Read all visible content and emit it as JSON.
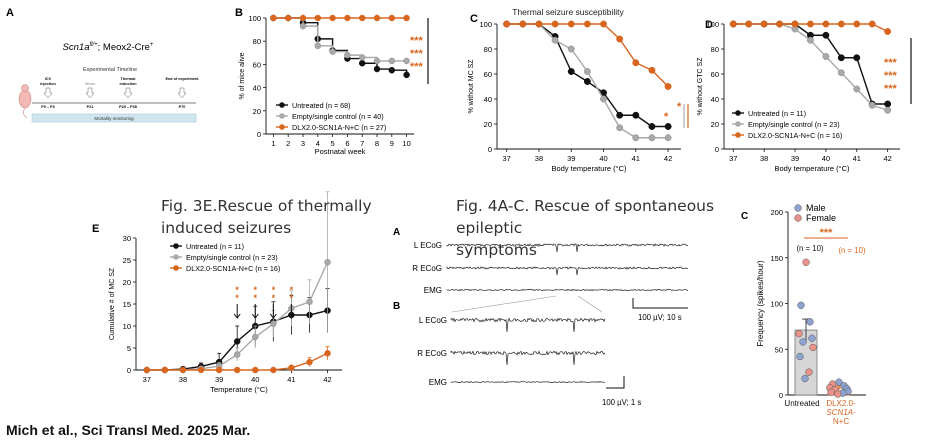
{
  "colors": {
    "untreated": "#111111",
    "control": "#a9a9a9",
    "treated": "#d9661f",
    "male": "#8fa3d1",
    "female": "#e8928a",
    "bar_fill": "#d6d6d6",
    "timeline_band": "#cfe6ef"
  },
  "captions": {
    "fig3e": "Fig. 3E.Rescue of thermally induced seizures",
    "fig3e_line1": "Fig. 3E.Rescue of thermally",
    "fig3e_line2": "induced seizures",
    "fig4": "Fig. 4A-C. Rescue of spontaneous epileptic symptoms",
    "fig4_line1": "Fig. 4A-C. Rescue of spontaneous epileptic",
    "fig4_line2": "symptoms",
    "credit": "Mich et al., Sci Transl Med. 2025 Mar.",
    "thermal_title": "Thermal seizure susceptibility"
  },
  "panel_a": {
    "letter": "A",
    "genotype_main": "Scn1a",
    "genotype_sup": "fl/+",
    "genotype_rest": "; Meox2-Cre",
    "genotype_sup2": "+",
    "timeline_title": "Experimental Timeline",
    "steps": [
      {
        "top": "ICV",
        "bottom": "injection",
        "day": "P0 – P3"
      },
      {
        "top": "",
        "bottom": "Wean",
        "day": "P21"
      },
      {
        "top": "Thermal",
        "bottom": "induction",
        "day": "P25 – P35"
      },
      {
        "top": "End of experiment",
        "bottom": "",
        "day": "P70"
      }
    ],
    "band_label": "Mortality monitoring"
  },
  "chart_data": [
    {
      "id": "fig2b_survival",
      "letter": "B",
      "type": "line",
      "title": "",
      "xlabel": "Postnatal week",
      "ylabel": "% of mice alive",
      "xlim": [
        0.5,
        10.5
      ],
      "ylim": [
        0,
        100
      ],
      "xticks": [
        1,
        2,
        3,
        4,
        5,
        6,
        7,
        8,
        9,
        10
      ],
      "yticks": [
        0,
        20,
        40,
        60,
        80,
        100
      ],
      "step": true,
      "series": [
        {
          "name": "Untreated",
          "n": "68",
          "color_key": "untreated",
          "x": [
            1,
            2,
            3,
            4,
            5,
            6,
            7,
            8,
            9,
            10
          ],
          "y": [
            100,
            100,
            96,
            82,
            72,
            65,
            61,
            56,
            55,
            51
          ]
        },
        {
          "name": "Empty/single control",
          "n": "40",
          "color_key": "control",
          "x": [
            1,
            2,
            3,
            4,
            5,
            6,
            7,
            8,
            9,
            10
          ],
          "y": [
            100,
            100,
            93,
            76,
            71,
            68,
            66,
            63,
            63,
            63
          ]
        },
        {
          "name": "DLX2.0-SCN1A-N+C",
          "n": "27",
          "color_key": "treated",
          "x": [
            1,
            2,
            3,
            4,
            5,
            6,
            7,
            8,
            9,
            10
          ],
          "y": [
            100,
            100,
            100,
            100,
            100,
            100,
            100,
            100,
            100,
            100
          ]
        }
      ],
      "significance": [
        "***",
        "***",
        "***"
      ],
      "legend_loc": "bottom-right"
    },
    {
      "id": "fig2c_mc",
      "letter": "C",
      "type": "line",
      "xlabel": "Body temperature (°C)",
      "ylabel": "% without MC SZ",
      "xlim": [
        36.7,
        42.4
      ],
      "ylim": [
        0,
        100
      ],
      "xticks": [
        37,
        38,
        39,
        40,
        41,
        42
      ],
      "yticks": [
        0,
        20,
        40,
        60,
        80,
        100
      ],
      "series": [
        {
          "name": "Untreated",
          "color_key": "untreated",
          "x": [
            37,
            37.5,
            38,
            38.5,
            39,
            39.5,
            40,
            40.5,
            41,
            41.5,
            42
          ],
          "y": [
            100,
            100,
            100,
            90,
            62,
            54,
            45,
            27,
            27,
            18,
            18
          ]
        },
        {
          "name": "Empty/single control",
          "color_key": "control",
          "x": [
            37,
            37.5,
            38,
            38.5,
            39,
            39.5,
            40,
            40.5,
            41,
            41.5,
            42
          ],
          "y": [
            100,
            100,
            100,
            87,
            80,
            62,
            40,
            17,
            9,
            9,
            9
          ]
        },
        {
          "name": "DLX2.0-SCN1A-N+C",
          "color_key": "treated",
          "x": [
            37,
            37.5,
            38,
            38.5,
            39,
            39.5,
            40,
            40.5,
            41,
            41.5,
            42
          ],
          "y": [
            100,
            100,
            100,
            100,
            100,
            100,
            100,
            88,
            69,
            63,
            50
          ]
        }
      ],
      "significance": [
        "*",
        "*"
      ]
    },
    {
      "id": "fig2d_gtc",
      "letter": "D",
      "type": "line",
      "xlabel": "Body temperature (°C)",
      "ylabel": "% without GTC SZ",
      "xlim": [
        36.7,
        42.4
      ],
      "ylim": [
        0,
        100
      ],
      "xticks": [
        37,
        38,
        39,
        40,
        41,
        42
      ],
      "yticks": [
        0,
        20,
        40,
        60,
        80,
        100
      ],
      "series": [
        {
          "name": "Untreated",
          "n": "11",
          "color_key": "untreated",
          "x": [
            37,
            37.5,
            38,
            38.5,
            39,
            39.5,
            40,
            40.5,
            41,
            41.5,
            42
          ],
          "y": [
            100,
            100,
            100,
            100,
            100,
            91,
            91,
            73,
            73,
            36,
            36
          ]
        },
        {
          "name": "Empty/single control",
          "n": "23",
          "color_key": "control",
          "x": [
            37,
            37.5,
            38,
            38.5,
            39,
            39.5,
            40,
            40.5,
            41,
            41.5,
            42
          ],
          "y": [
            100,
            100,
            100,
            100,
            96,
            87,
            74,
            61,
            48,
            35,
            31
          ]
        },
        {
          "name": "DLX2.0-SCN1A-N+C",
          "n": "16",
          "color_key": "treated",
          "x": [
            37,
            37.5,
            38,
            38.5,
            39,
            39.5,
            40,
            40.5,
            41,
            41.5,
            42
          ],
          "y": [
            100,
            100,
            100,
            100,
            100,
            100,
            100,
            100,
            100,
            100,
            94
          ]
        }
      ],
      "significance": [
        "***",
        "***",
        "***"
      ],
      "legend_loc": "bottom-left"
    },
    {
      "id": "fig3e_cumulative",
      "letter": "E",
      "type": "line",
      "xlabel": "Temperature (°C)",
      "ylabel": "Cumulative # of MC SZ",
      "xlim": [
        36.7,
        42.4
      ],
      "ylim": [
        0,
        30
      ],
      "xticks": [
        37,
        38,
        39,
        40,
        41,
        42
      ],
      "yticks": [
        0,
        5,
        10,
        15,
        20,
        25,
        30
      ],
      "series": [
        {
          "name": "Untreated",
          "n": "11",
          "color_key": "untreated",
          "x": [
            37,
            37.5,
            38,
            38.5,
            39,
            39.5,
            40,
            40.5,
            41,
            41.5,
            42
          ],
          "y": [
            0,
            0,
            0.2,
            0.8,
            1.8,
            6.5,
            10,
            11,
            12.5,
            12.5,
            13.5
          ],
          "err": [
            0,
            0,
            0.3,
            0.8,
            2,
            3.5,
            4.5,
            4.5,
            4.5,
            4,
            5
          ]
        },
        {
          "name": "Empty/single control",
          "n": "23",
          "color_key": "control",
          "x": [
            37,
            37.5,
            38,
            38.5,
            39,
            39.5,
            40,
            40.5,
            41,
            41.5,
            42
          ],
          "y": [
            0,
            0,
            0,
            0.3,
            0.9,
            3.5,
            7.5,
            10.5,
            14,
            15.5,
            24.5
          ],
          "err": [
            0,
            0,
            0,
            0.3,
            0.8,
            1.5,
            2.5,
            3,
            4,
            5,
            16
          ]
        },
        {
          "name": "DLX2.0-SCN1A-N+C",
          "n": "16",
          "color_key": "treated",
          "x": [
            37,
            37.5,
            38,
            38.5,
            39,
            39.5,
            40,
            40.5,
            41,
            41.5,
            42
          ],
          "y": [
            0,
            0,
            0,
            0,
            0,
            0,
            0,
            0,
            0.5,
            1.8,
            3.8
          ],
          "err": [
            0,
            0,
            0,
            0,
            0,
            0,
            0,
            0,
            0.5,
            1,
            1.5
          ]
        }
      ],
      "annotations": [
        {
          "x": 39.5,
          "text": "**"
        },
        {
          "x": 40,
          "text": "**"
        },
        {
          "x": 40.5,
          "text": "**"
        },
        {
          "x": 41,
          "text": "**"
        }
      ],
      "legend_loc": "top-left"
    },
    {
      "id": "fig4c_frequency",
      "letter": "C",
      "type": "bar",
      "ylabel": "Frequency (spikes/hour)",
      "ylim": [
        0,
        200
      ],
      "yticks": [
        0,
        50,
        100,
        150,
        200
      ],
      "categories": [
        "Untreated",
        "DLX2.0-SCN1A-N+C"
      ],
      "category_lines": [
        [
          "Untreated"
        ],
        [
          "DLX2.0-",
          "SCN1A-",
          "N+C"
        ]
      ],
      "values": [
        71,
        8
      ],
      "errors": [
        12,
        2
      ],
      "n_labels": [
        "(n = 10)",
        "(n = 10)"
      ],
      "significance": "***",
      "legend": [
        {
          "label": "Male",
          "color_key": "male"
        },
        {
          "label": "Female",
          "color_key": "female"
        }
      ],
      "points": [
        {
          "group": 0,
          "sex": "female",
          "v": 145
        },
        {
          "group": 0,
          "sex": "male",
          "v": 98
        },
        {
          "group": 0,
          "sex": "male",
          "v": 80
        },
        {
          "group": 0,
          "sex": "female",
          "v": 67
        },
        {
          "group": 0,
          "sex": "male",
          "v": 62
        },
        {
          "group": 0,
          "sex": "male",
          "v": 58
        },
        {
          "group": 0,
          "sex": "female",
          "v": 52
        },
        {
          "group": 0,
          "sex": "male",
          "v": 42
        },
        {
          "group": 0,
          "sex": "female",
          "v": 25
        },
        {
          "group": 0,
          "sex": "male",
          "v": 18
        },
        {
          "group": 1,
          "sex": "male",
          "v": 14
        },
        {
          "group": 1,
          "sex": "female",
          "v": 12
        },
        {
          "group": 1,
          "sex": "male",
          "v": 10
        },
        {
          "group": 1,
          "sex": "female",
          "v": 8
        },
        {
          "group": 1,
          "sex": "male",
          "v": 7
        },
        {
          "group": 1,
          "sex": "female",
          "v": 6
        },
        {
          "group": 1,
          "sex": "male",
          "v": 4
        },
        {
          "group": 1,
          "sex": "female",
          "v": 3
        },
        {
          "group": 1,
          "sex": "male",
          "v": 2
        },
        {
          "group": 1,
          "sex": "female",
          "v": 1
        }
      ]
    }
  ],
  "traces": {
    "letter_a": "A",
    "letter_b": "B",
    "channels_a": [
      "L ECoG",
      "R ECoG",
      "EMG"
    ],
    "channels_b": [
      "L ECoG",
      "R ECoG",
      "EMG"
    ],
    "scale_a": "100 µV; 10 s",
    "scale_b": "100 µV; 1 s"
  }
}
